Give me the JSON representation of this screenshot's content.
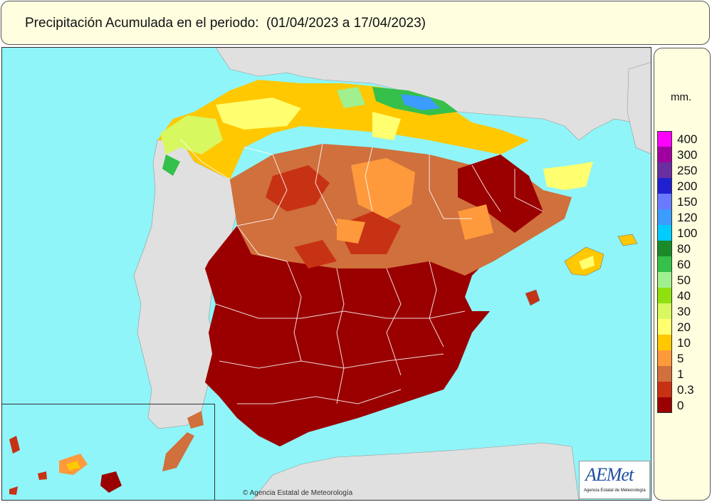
{
  "header": {
    "title": "Precipitación Acumulada en el periodo:  (01/04/2023 a 17/04/2023)"
  },
  "map": {
    "copyright": "© Agencia Estatal de Meteorología",
    "logo_text": "AEMet",
    "logo_subtext": "Agencia Estatal de Meteorología"
  },
  "legend": {
    "unit": "mm.",
    "classes": [
      {
        "label": "400",
        "color": "#ff00ff"
      },
      {
        "label": "300",
        "color": "#a000a0"
      },
      {
        "label": "250",
        "color": "#6a2ea0"
      },
      {
        "label": "200",
        "color": "#2020d0"
      },
      {
        "label": "150",
        "color": "#6a7aff"
      },
      {
        "label": "120",
        "color": "#3c9cff"
      },
      {
        "label": "100",
        "color": "#00ccff"
      },
      {
        "label": "80",
        "color": "#1a8a2a"
      },
      {
        "label": "60",
        "color": "#34c04a"
      },
      {
        "label": "50",
        "color": "#a0f090"
      },
      {
        "label": "40",
        "color": "#90e010"
      },
      {
        "label": "30",
        "color": "#d8f860"
      },
      {
        "label": "20",
        "color": "#ffff70"
      },
      {
        "label": "10",
        "color": "#ffc800"
      },
      {
        "label": "5",
        "color": "#ff9a3c"
      },
      {
        "label": "1",
        "color": "#d0703c"
      },
      {
        "label": "0.3",
        "color": "#c83214"
      },
      {
        "label": "0",
        "color": "#9a0000"
      }
    ]
  },
  "colors": {
    "sea": "#8ff5f8",
    "land_other": "#e0e0e0",
    "border_lines": "#ffffff"
  }
}
